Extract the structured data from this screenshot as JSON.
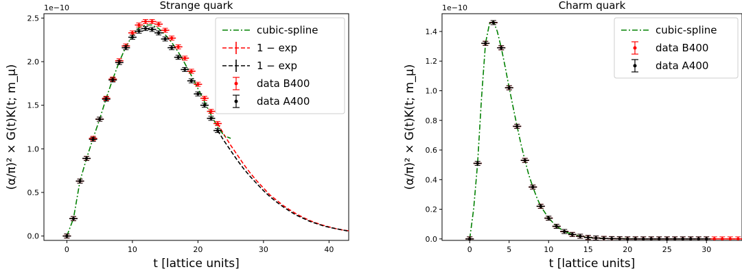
{
  "chart_data": [
    {
      "type": "line",
      "title": "Strange quark",
      "xlabel": "t [lattice units]",
      "ylabel": "(α/π)² × G(t)K(t; m_μ)",
      "offset_label": "1e−10",
      "xlim": [
        -3.5,
        43
      ],
      "ylim": [
        -0.05,
        2.55
      ],
      "xticks": [
        0,
        10,
        20,
        30,
        40
      ],
      "yticks": [
        0.0,
        0.5,
        1.0,
        1.5,
        2.0,
        2.5
      ],
      "ytick_labels": [
        "0.0",
        "0.5",
        "1.0",
        "1.5",
        "2.0",
        "2.5"
      ],
      "legend_position": "top-right",
      "legend": [
        {
          "label": "cubic-spline",
          "style": "dashdot",
          "color": "#008000"
        },
        {
          "label": "1 − exp",
          "style": "dashed-cross",
          "color": "#ff0000"
        },
        {
          "label": "1 − exp",
          "style": "dashed-cross",
          "color": "#000000"
        },
        {
          "label": "data B400",
          "style": "errorbar",
          "color": "#ff0000"
        },
        {
          "label": "data A400",
          "style": "errorbar",
          "color": "#000000"
        }
      ],
      "series": [
        {
          "name": "data B400",
          "color": "#ff0000",
          "x": [
            0,
            1,
            2,
            3,
            4,
            5,
            6,
            7,
            8,
            9,
            10,
            11,
            12,
            13,
            14,
            15,
            16,
            17,
            18,
            19,
            20,
            21,
            22,
            23
          ],
          "y": [
            0.0,
            0.2,
            0.63,
            0.89,
            1.12,
            1.34,
            1.58,
            1.8,
            2.01,
            2.18,
            2.33,
            2.42,
            2.46,
            2.46,
            2.43,
            2.36,
            2.27,
            2.17,
            2.04,
            1.89,
            1.74,
            1.58,
            1.43,
            1.29
          ],
          "yerr": 0.02
        },
        {
          "name": "data A400",
          "color": "#000000",
          "x": [
            0,
            1,
            2,
            3,
            4,
            5,
            6,
            7,
            8,
            9,
            10,
            11,
            12,
            13,
            14,
            15,
            16,
            17,
            18,
            19,
            20,
            21,
            22,
            23
          ],
          "y": [
            0.0,
            0.2,
            0.63,
            0.89,
            1.11,
            1.34,
            1.57,
            1.79,
            1.99,
            2.16,
            2.28,
            2.35,
            2.38,
            2.37,
            2.33,
            2.26,
            2.16,
            2.05,
            1.91,
            1.78,
            1.63,
            1.5,
            1.35,
            1.21
          ],
          "yerr": 0.02
        },
        {
          "name": "1 − exp",
          "color": "#ff0000",
          "style": "dashed",
          "x": [
            23,
            24,
            25,
            26,
            27,
            28,
            29,
            30,
            31,
            32,
            33,
            34,
            35,
            36,
            37,
            38,
            39,
            40,
            41,
            42,
            43
          ],
          "y": [
            1.29,
            1.16,
            1.04,
            0.93,
            0.82,
            0.72,
            0.63,
            0.55,
            0.47,
            0.41,
            0.35,
            0.3,
            0.255,
            0.215,
            0.18,
            0.15,
            0.125,
            0.105,
            0.085,
            0.07,
            0.06
          ]
        },
        {
          "name": "1 − exp",
          "color": "#000000",
          "style": "dashed",
          "x": [
            23,
            24,
            25,
            26,
            27,
            28,
            29,
            30,
            31,
            32,
            33,
            34,
            35,
            36,
            37,
            38,
            39,
            40,
            41,
            42,
            43
          ],
          "y": [
            1.21,
            1.09,
            0.98,
            0.87,
            0.77,
            0.68,
            0.6,
            0.52,
            0.45,
            0.39,
            0.335,
            0.285,
            0.24,
            0.205,
            0.17,
            0.145,
            0.12,
            0.1,
            0.085,
            0.07,
            0.055
          ]
        },
        {
          "name": "cubic-spline",
          "color": "#008000",
          "style": "dashdot",
          "x": [
            0,
            1,
            2,
            3,
            4,
            5,
            6,
            7,
            8,
            9,
            10,
            11,
            12,
            13,
            14,
            15,
            16,
            17,
            18,
            19,
            20,
            21,
            22,
            23,
            24,
            25
          ],
          "y": [
            0.0,
            0.2,
            0.63,
            0.89,
            1.12,
            1.34,
            1.58,
            1.8,
            2.0,
            2.17,
            2.3,
            2.39,
            2.42,
            2.42,
            2.38,
            2.31,
            2.22,
            2.11,
            1.98,
            1.84,
            1.69,
            1.54,
            1.39,
            1.25,
            1.15,
            1.12
          ]
        }
      ]
    },
    {
      "type": "line",
      "title": "Charm quark",
      "xlabel": "t [lattice units]",
      "ylabel": "(α/π)² × G(t)K(t; m_μ)",
      "offset_label": "1e−10",
      "xlim": [
        -3.5,
        34.5
      ],
      "ylim": [
        -0.01,
        1.52
      ],
      "xticks": [
        0,
        5,
        10,
        15,
        20,
        25,
        30
      ],
      "yticks": [
        0.0,
        0.2,
        0.4,
        0.6,
        0.8,
        1.0,
        1.2,
        1.4
      ],
      "ytick_labels": [
        "0.0",
        "0.2",
        "0.4",
        "0.6",
        "0.8",
        "1.0",
        "1.2",
        "1.4"
      ],
      "legend_position": "top-right",
      "legend": [
        {
          "label": "cubic-spline",
          "style": "dashdot",
          "color": "#008000"
        },
        {
          "label": "data B400",
          "style": "errorbar",
          "color": "#ff0000"
        },
        {
          "label": "data A400",
          "style": "errorbar",
          "color": "#000000"
        }
      ],
      "series": [
        {
          "name": "data B400",
          "color": "#ff0000",
          "x": [
            0,
            1,
            2,
            3,
            4,
            5,
            6,
            7,
            8,
            9,
            10,
            11,
            12,
            13,
            14,
            15,
            16,
            17,
            18,
            19,
            20,
            21,
            22,
            23,
            24,
            25,
            26,
            27,
            28,
            29,
            30,
            31,
            32,
            33,
            34
          ],
          "y": [
            0.0,
            0.51,
            1.32,
            1.46,
            1.29,
            1.02,
            0.76,
            0.53,
            0.35,
            0.22,
            0.14,
            0.085,
            0.05,
            0.03,
            0.018,
            0.01,
            0.006,
            0.003,
            0.002,
            0.001,
            0,
            0,
            0,
            0,
            0,
            0,
            0,
            0,
            0,
            0,
            0,
            0,
            0,
            0,
            0
          ],
          "yerr": 0.008
        },
        {
          "name": "data A400",
          "color": "#000000",
          "x": [
            0,
            1,
            2,
            3,
            4,
            5,
            6,
            7,
            8,
            9,
            10,
            11,
            12,
            13,
            14,
            15,
            16,
            17,
            18,
            19,
            20,
            21,
            22,
            23,
            24,
            25,
            26,
            27,
            28,
            29,
            30
          ],
          "y": [
            0.0,
            0.51,
            1.32,
            1.46,
            1.29,
            1.02,
            0.76,
            0.53,
            0.35,
            0.22,
            0.14,
            0.085,
            0.05,
            0.03,
            0.018,
            0.01,
            0.006,
            0.003,
            0.002,
            0.001,
            0,
            0,
            0,
            0,
            0,
            0,
            0,
            0,
            0,
            0,
            0
          ],
          "yerr": 0.008
        },
        {
          "name": "cubic-spline",
          "color": "#008000",
          "style": "dashdot",
          "x": [
            0,
            0.5,
            1,
            1.5,
            2,
            2.5,
            3,
            3.5,
            4,
            4.5,
            5,
            5.5,
            6,
            6.5,
            7,
            7.5,
            8,
            8.5,
            9,
            10,
            11,
            12,
            13,
            14,
            15,
            16,
            17,
            18,
            20,
            22,
            25,
            28,
            31,
            34
          ],
          "y": [
            0.0,
            0.2,
            0.51,
            0.95,
            1.32,
            1.45,
            1.47,
            1.4,
            1.29,
            1.16,
            1.02,
            0.89,
            0.76,
            0.64,
            0.53,
            0.43,
            0.35,
            0.28,
            0.22,
            0.14,
            0.085,
            0.05,
            0.03,
            0.018,
            0.01,
            0.006,
            0.003,
            0.002,
            0.001,
            0,
            0,
            0,
            0,
            0
          ]
        }
      ]
    }
  ]
}
